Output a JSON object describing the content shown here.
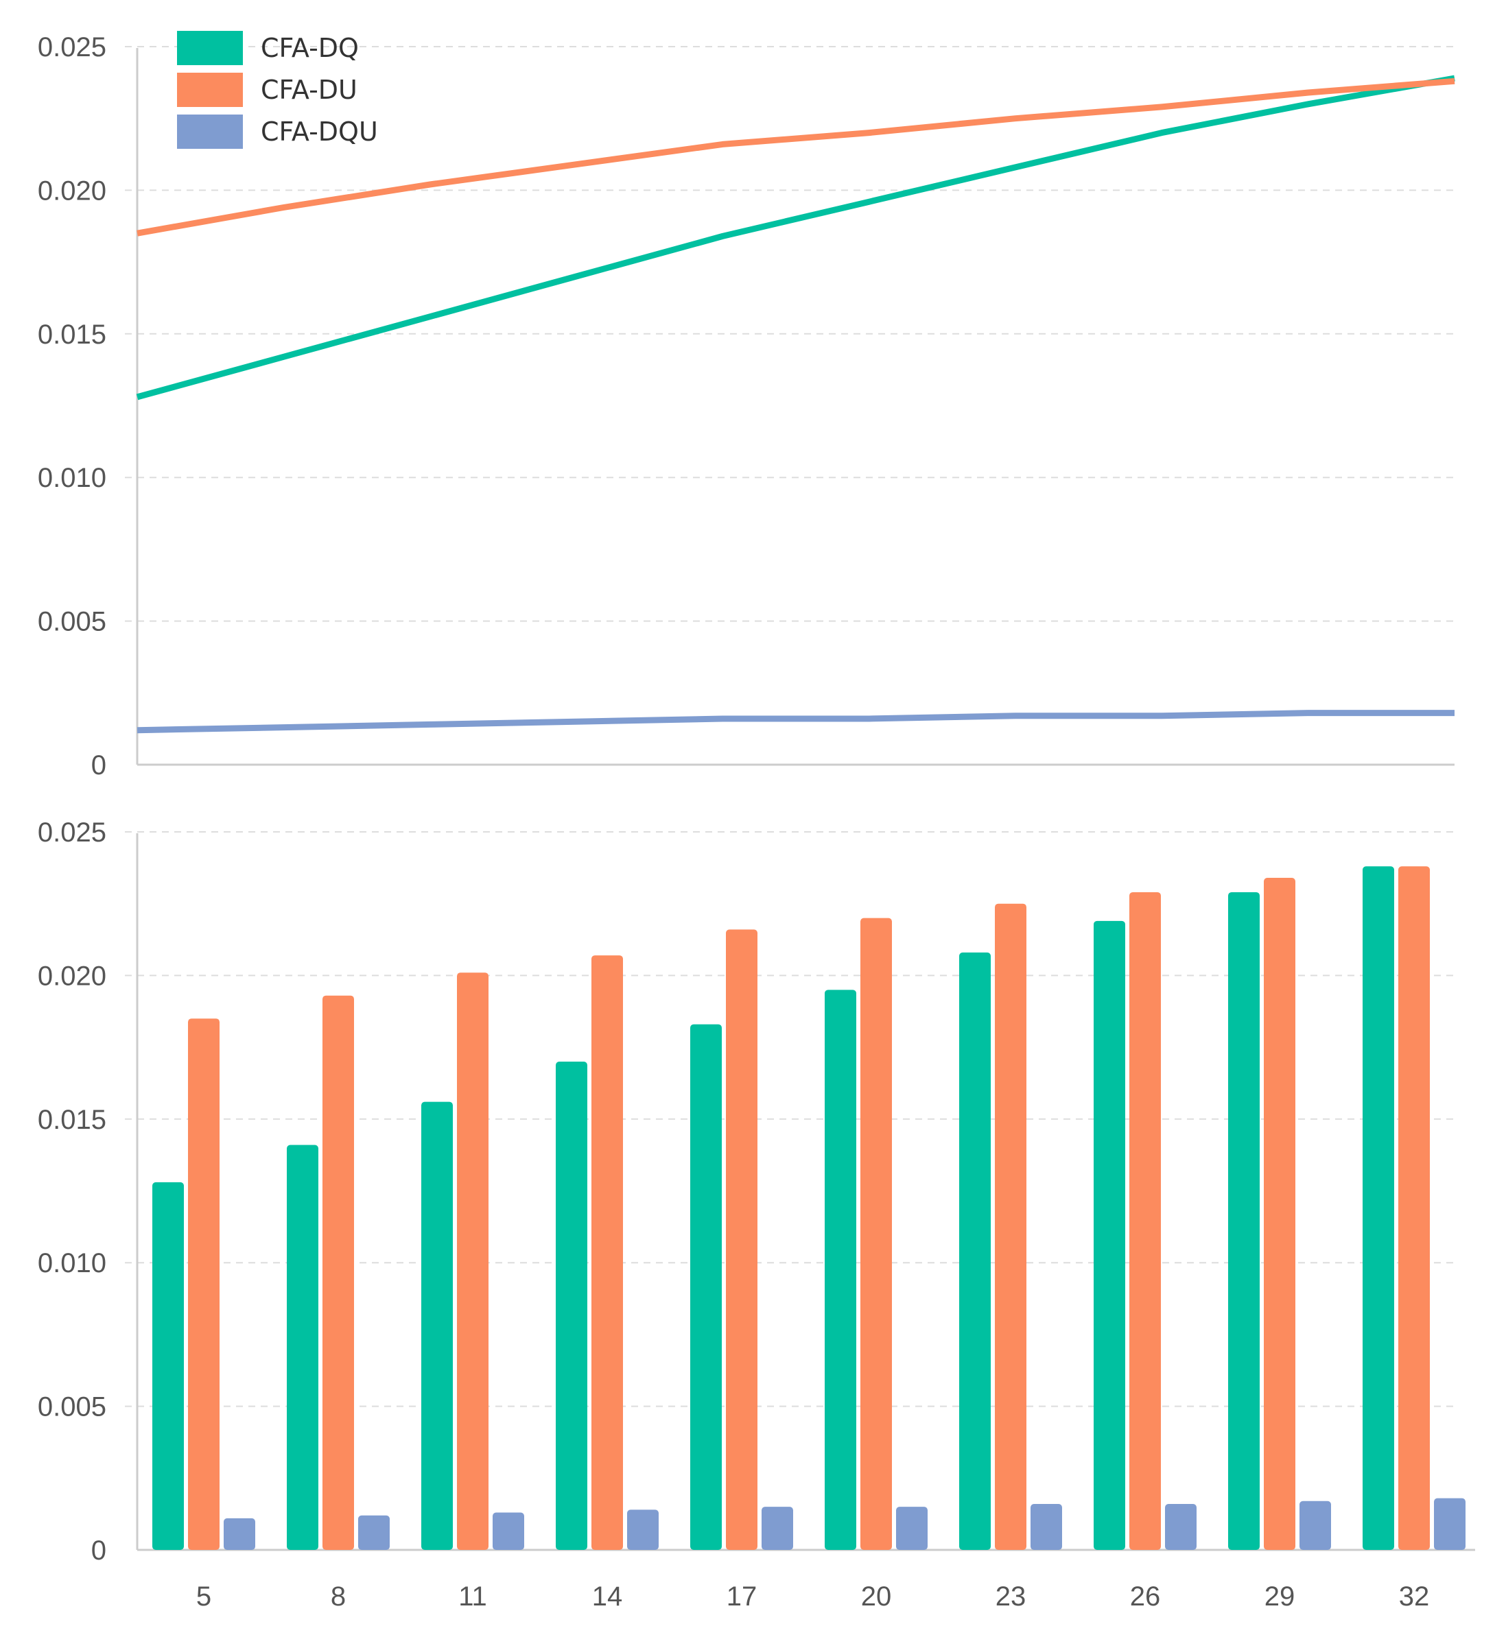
{
  "chart_data": [
    {
      "type": "line",
      "categories": [
        "5",
        "8",
        "11",
        "14",
        "17",
        "20",
        "23",
        "26",
        "29",
        "32"
      ],
      "series": [
        {
          "name": "CFA-DQ",
          "color": "#00c0a0",
          "values": [
            0.0128,
            0.0142,
            0.0156,
            0.017,
            0.0184,
            0.0196,
            0.0208,
            0.022,
            0.023,
            0.0239
          ]
        },
        {
          "name": "CFA-DU",
          "color": "#fc8b5e",
          "values": [
            0.0185,
            0.0194,
            0.0202,
            0.0209,
            0.0216,
            0.022,
            0.0225,
            0.0229,
            0.0234,
            0.0238
          ]
        },
        {
          "name": "CFA-DQU",
          "color": "#7f9cd0",
          "values": [
            0.0012,
            0.0013,
            0.0014,
            0.0015,
            0.0016,
            0.0016,
            0.0017,
            0.0017,
            0.0018,
            0.0018
          ]
        }
      ],
      "ylim": [
        0,
        0.025
      ],
      "yticks": [
        "0",
        "0.005",
        "0.010",
        "0.015",
        "0.020",
        "0.025"
      ],
      "grid": true,
      "legend": "top-left",
      "title": "",
      "xlabel": "",
      "ylabel": ""
    },
    {
      "type": "bar",
      "categories": [
        "5",
        "8",
        "11",
        "14",
        "17",
        "20",
        "23",
        "26",
        "29",
        "32"
      ],
      "series": [
        {
          "name": "CFA-DQ",
          "color": "#00c0a0",
          "values": [
            0.0128,
            0.0141,
            0.0156,
            0.017,
            0.0183,
            0.0195,
            0.0208,
            0.0219,
            0.0229,
            0.0238
          ]
        },
        {
          "name": "CFA-DU",
          "color": "#fc8b5e",
          "values": [
            0.0185,
            0.0193,
            0.0201,
            0.0207,
            0.0216,
            0.022,
            0.0225,
            0.0229,
            0.0234,
            0.0238
          ]
        },
        {
          "name": "CFA-DQU",
          "color": "#7f9cd0",
          "values": [
            0.0011,
            0.0012,
            0.0013,
            0.0014,
            0.0015,
            0.0015,
            0.0016,
            0.0016,
            0.0017,
            0.0018
          ]
        }
      ],
      "ylim": [
        0,
        0.025
      ],
      "yticks": [
        "0",
        "0.005",
        "0.010",
        "0.015",
        "0.020",
        "0.025"
      ],
      "xticks": [
        "5",
        "8",
        "11",
        "14",
        "17",
        "20",
        "23",
        "26",
        "29",
        "32"
      ],
      "grid": true,
      "title": "",
      "xlabel": "",
      "ylabel": ""
    }
  ]
}
